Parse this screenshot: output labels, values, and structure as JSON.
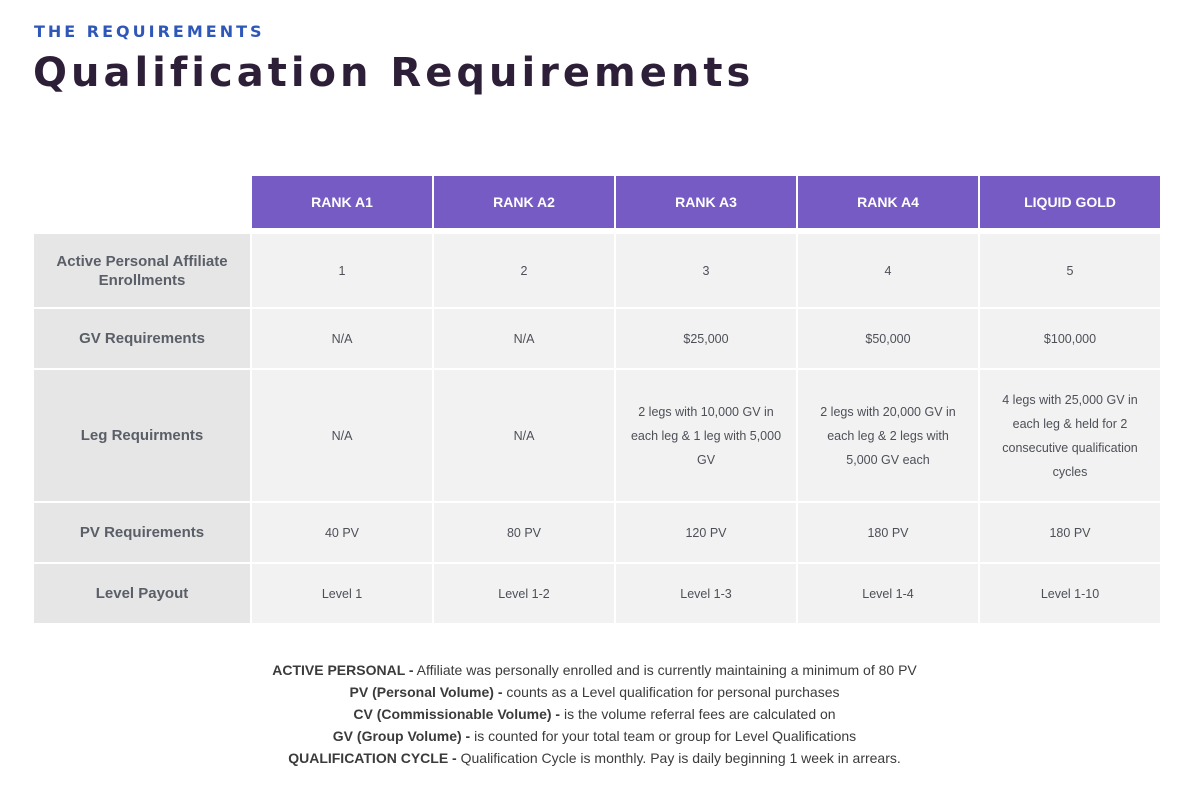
{
  "header": {
    "eyebrow": "THE REQUIREMENTS",
    "title": "Qualification Requirements"
  },
  "table": {
    "columns": [
      "RANK A1",
      "RANK A2",
      "RANK A3",
      "RANK A4",
      "LIQUID GOLD"
    ],
    "rows": [
      {
        "label": "Active Personal Affiliate Enrollments",
        "values": [
          "1",
          "2",
          "3",
          "4",
          "5"
        ]
      },
      {
        "label": "GV Requirements",
        "values": [
          "N/A",
          "N/A",
          "$25,000",
          "$50,000",
          "$100,000"
        ]
      },
      {
        "label": "Leg Requirments",
        "values": [
          "N/A",
          "N/A",
          "2 legs with 10,000 GV in each leg & 1 leg with 5,000 GV",
          "2 legs with 20,000 GV in each leg & 2 legs with 5,000 GV each",
          "4 legs with 25,000 GV in each leg & held for 2 consecutive qualification cycles"
        ]
      },
      {
        "label": "PV Requirements",
        "values": [
          "40 PV",
          "80 PV",
          "120 PV",
          "180 PV",
          "180 PV"
        ]
      },
      {
        "label": "Level Payout",
        "values": [
          "Level 1",
          "Level 1-2",
          "Level 1-3",
          "Level 1-4",
          "Level 1-10"
        ]
      }
    ]
  },
  "definitions": [
    {
      "term": "ACTIVE PERSONAL -",
      "text": " Affiliate was personally enrolled and is currently maintaining a minimum of 80 PV"
    },
    {
      "term": "PV (Personal Volume) -",
      "text": " counts as a Level qualification for personal purchases"
    },
    {
      "term": "CV (Commissionable Volume) -",
      "text": " is the volume referral fees are calculated on"
    },
    {
      "term": "GV (Group Volume) -",
      "text": " is counted for your total team or group for Level Qualifications"
    },
    {
      "term": "QUALIFICATION CYCLE -",
      "text": " Qualification Cycle is monthly. Pay is daily beginning 1 week in arrears."
    }
  ],
  "colors": {
    "eyebrow": "#2f57b8",
    "title": "#2e1f38",
    "header_fill": "#775bc4",
    "label_fill": "#e6e6e6",
    "value_fill": "#f2f2f2"
  }
}
